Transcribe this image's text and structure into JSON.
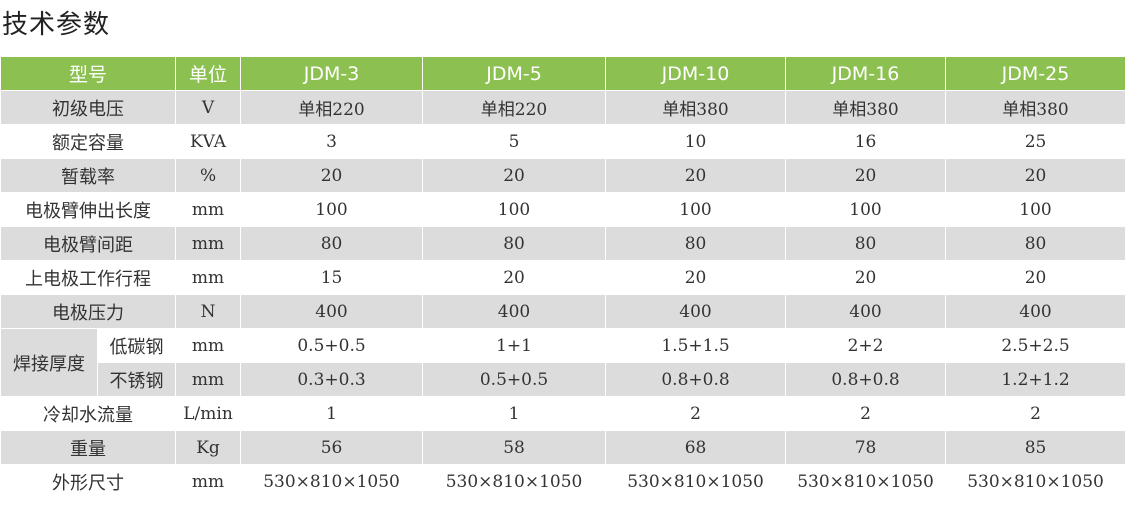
{
  "title": "技术参数",
  "table": {
    "header": [
      "型号",
      "单位",
      "JDM-3",
      "JDM-5",
      "JDM-10",
      "JDM-16",
      "JDM-25"
    ],
    "rows": [
      {
        "label": "初级电压",
        "cells": [
          "V",
          "单相220",
          "单相220",
          "单相380",
          "单相380",
          "单相380"
        ]
      },
      {
        "label": "额定容量",
        "cells": [
          "KVA",
          "3",
          "5",
          "10",
          "16",
          "25"
        ]
      },
      {
        "label": "暂载率",
        "cells": [
          "%",
          "20",
          "20",
          "20",
          "20",
          "20"
        ]
      },
      {
        "label": "电极臂伸出长度",
        "cells": [
          "mm",
          "100",
          "100",
          "100",
          "100",
          "100"
        ]
      },
      {
        "label": "电极臂间距",
        "cells": [
          "mm",
          "80",
          "80",
          "80",
          "80",
          "80"
        ]
      },
      {
        "label": "上电极工作行程",
        "cells": [
          "mm",
          "15",
          "20",
          "20",
          "20",
          "20"
        ]
      },
      {
        "label": "电极压力",
        "cells": [
          "N",
          "400",
          "400",
          "400",
          "400",
          "400"
        ]
      },
      {
        "group": "焊接厚度",
        "sub": [
          {
            "label": "低碳钢",
            "cells": [
              "mm",
              "0.5+0.5",
              "1+1",
              "1.5+1.5",
              "2+2",
              "2.5+2.5"
            ]
          },
          {
            "label": "不锈钢",
            "cells": [
              "mm",
              "0.3+0.3",
              "0.5+0.5",
              "0.8+0.8",
              "0.8+0.8",
              "1.2+1.2"
            ]
          }
        ]
      },
      {
        "label": "冷却水流量",
        "cells": [
          "L/min",
          "1",
          "1",
          "2",
          "2",
          "2"
        ]
      },
      {
        "label": "重量",
        "cells": [
          "Kg",
          "56",
          "58",
          "68",
          "78",
          "85"
        ]
      },
      {
        "label": "外形尺寸",
        "cells": [
          "mm",
          "530×810×1050",
          "530×810×1050",
          "530×810×1050",
          "530×810×1050",
          "530×810×1050"
        ]
      }
    ]
  }
}
